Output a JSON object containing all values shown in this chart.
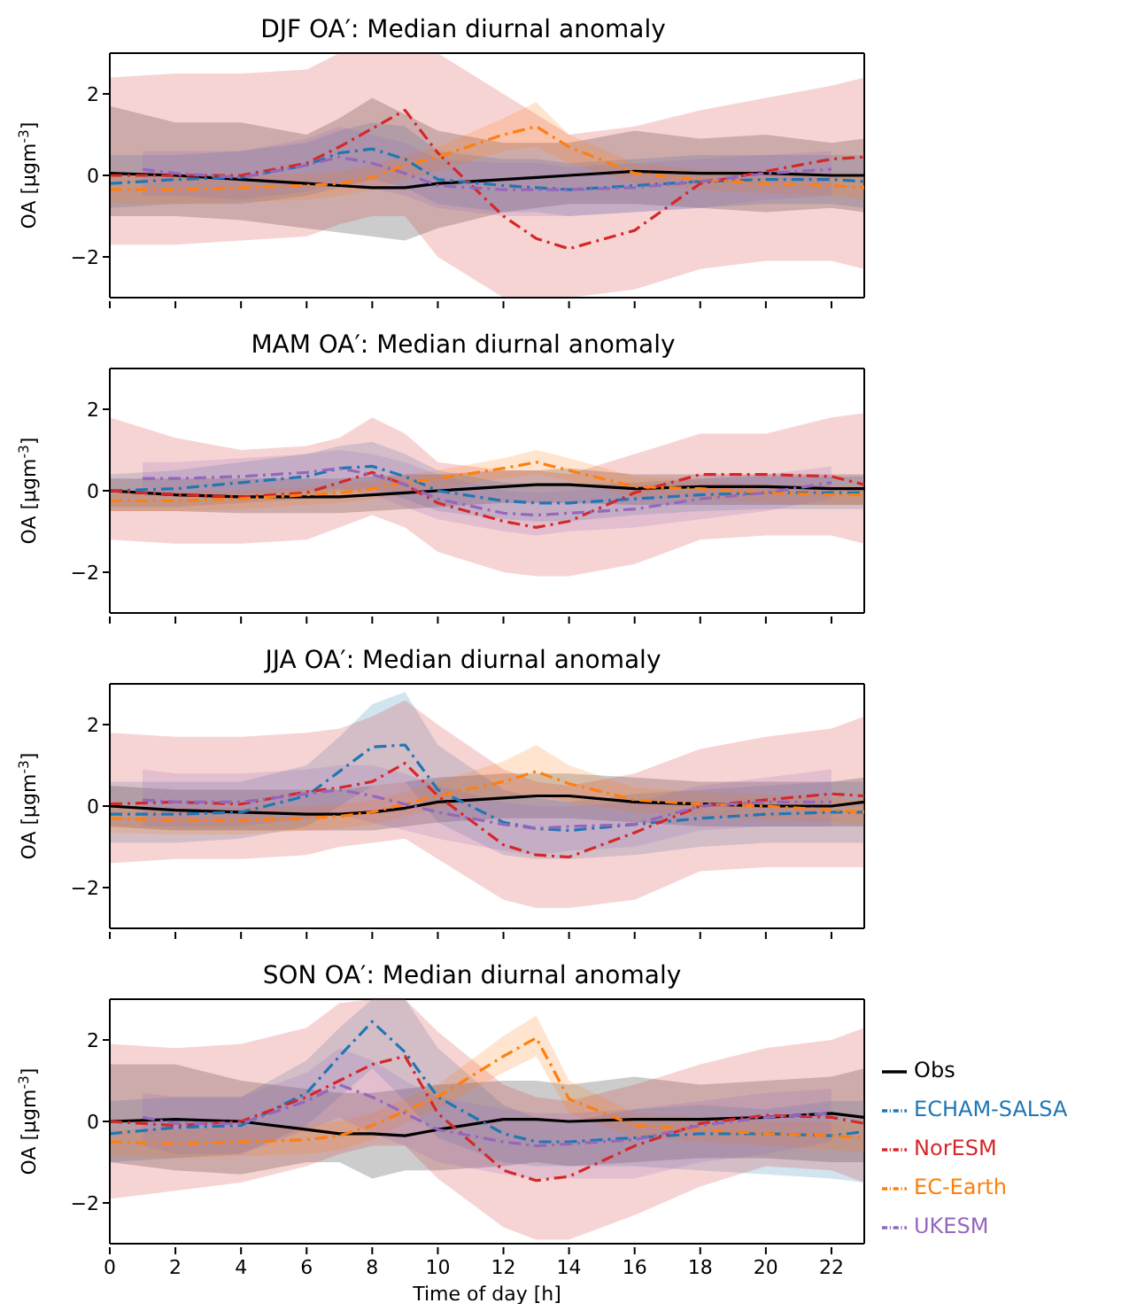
{
  "chart_data": [
    {
      "type": "line",
      "title": "DJF OA′: Median diurnal anomaly",
      "ylabel": "OA  [μgm$^{-3}$]",
      "x": [
        0,
        2,
        4,
        6,
        7,
        8,
        9,
        10,
        12,
        13,
        14,
        16,
        18,
        20,
        22,
        23
      ],
      "xlim": [
        0,
        23
      ],
      "xticks": [
        0,
        2,
        4,
        6,
        8,
        10,
        12,
        14,
        16,
        18,
        20,
        22
      ],
      "ylim": [
        -3,
        3
      ],
      "yticks": [
        -2,
        0,
        2
      ],
      "tick_labels": "y",
      "legend": false,
      "series": [
        {
          "color": "#000000",
          "line_style": "solid",
          "values": [
            0.05,
            0,
            -0.1,
            -0.2,
            -0.25,
            -0.3,
            -0.3,
            -0.2,
            -0.1,
            -0.05,
            0,
            0.1,
            0.05,
            0.05,
            0,
            0
          ],
          "lower": [
            -1.0,
            -1.0,
            -1.1,
            -1.3,
            -1.4,
            -1.5,
            -1.6,
            -1.3,
            -0.9,
            -0.8,
            -0.7,
            -0.7,
            -0.8,
            -0.9,
            -0.8,
            -0.9
          ],
          "upper": [
            1.7,
            1.3,
            1.3,
            1.0,
            1.4,
            1.9,
            1.5,
            1.1,
            0.8,
            0.8,
            0.8,
            1.1,
            0.9,
            1.0,
            0.8,
            0.9
          ]
        },
        {
          "color": "#1f77b4",
          "line_style": "dashed",
          "values": [
            -0.2,
            -0.1,
            -0.05,
            0.25,
            0.55,
            0.65,
            0.4,
            -0.1,
            -0.25,
            -0.3,
            -0.35,
            -0.25,
            -0.15,
            -0.1,
            -0.1,
            -0.15
          ],
          "lower": [
            -0.8,
            -0.7,
            -0.7,
            -0.5,
            -0.3,
            -0.1,
            -0.3,
            -0.7,
            -0.9,
            -0.9,
            -1.0,
            -0.9,
            -0.8,
            -0.7,
            -0.7,
            -0.8
          ],
          "upper": [
            0.5,
            0.5,
            0.6,
            0.8,
            1.1,
            1.3,
            1.2,
            0.6,
            0.4,
            0.4,
            0.3,
            0.4,
            0.5,
            0.5,
            0.5,
            0.5
          ]
        },
        {
          "color": "#d62728",
          "line_style": "dashed",
          "values": [
            0,
            0,
            0,
            0.3,
            0.7,
            1.15,
            1.6,
            0.55,
            -1.0,
            -1.55,
            -1.8,
            -1.35,
            -0.2,
            0.1,
            0.4,
            0.45
          ],
          "lower": [
            -1.7,
            -1.7,
            -1.6,
            -1.5,
            -1.2,
            -1.0,
            -1.0,
            -2.0,
            -3.0,
            -3.0,
            -3.0,
            -2.8,
            -2.3,
            -2.1,
            -2.1,
            -2.3
          ],
          "upper": [
            2.4,
            2.5,
            2.5,
            2.6,
            3.0,
            3.0,
            3.0,
            3.0,
            2.0,
            1.5,
            1.0,
            1.2,
            1.6,
            1.9,
            2.2,
            2.4
          ]
        },
        {
          "color": "#ff7f0e",
          "line_style": "dashed",
          "values": [
            -0.35,
            -0.35,
            -0.3,
            -0.25,
            -0.2,
            -0.05,
            0.25,
            0.45,
            1.0,
            1.2,
            0.7,
            0.05,
            -0.1,
            -0.2,
            -0.25,
            -0.3
          ],
          "lower": [
            -0.7,
            -0.7,
            -0.65,
            -0.6,
            -0.5,
            -0.35,
            -0.1,
            0.1,
            0.6,
            0.7,
            0.3,
            -0.2,
            -0.35,
            -0.45,
            -0.5,
            -0.6
          ],
          "upper": [
            0,
            0,
            0,
            0.05,
            0.1,
            0.25,
            0.5,
            0.7,
            1.4,
            1.8,
            1.0,
            0.3,
            0.15,
            0.1,
            0.05,
            0
          ]
        },
        {
          "color": "#9467bd",
          "line_style": "dashed",
          "x": [
            1,
            2,
            4,
            6,
            7,
            8,
            9,
            10,
            12,
            13,
            14,
            16,
            18,
            20,
            22
          ],
          "values": [
            0.15,
            0.05,
            -0.05,
            0.25,
            0.45,
            0.3,
            0.05,
            -0.25,
            -0.35,
            -0.35,
            -0.35,
            -0.3,
            -0.15,
            0.05,
            0.15
          ],
          "lower": [
            -0.5,
            -0.5,
            -0.6,
            -0.4,
            -0.2,
            -0.3,
            -0.5,
            -0.8,
            -1.0,
            -1.0,
            -1.0,
            -0.9,
            -0.8,
            -0.6,
            -0.5
          ],
          "upper": [
            0.6,
            0.6,
            0.6,
            0.9,
            1.2,
            1.0,
            0.8,
            0.4,
            0.3,
            0.3,
            0.2,
            0.3,
            0.4,
            0.5,
            0.6
          ]
        }
      ]
    },
    {
      "type": "line",
      "title": "MAM OA′: Median diurnal anomaly",
      "ylabel": "OA  [μgm$^{-3}$]",
      "x": [
        0,
        2,
        4,
        6,
        7,
        8,
        9,
        10,
        12,
        13,
        14,
        16,
        18,
        20,
        22,
        23
      ],
      "xlim": [
        0,
        23
      ],
      "xticks": [
        0,
        2,
        4,
        6,
        8,
        10,
        12,
        14,
        16,
        18,
        20,
        22
      ],
      "ylim": [
        -3,
        3
      ],
      "yticks": [
        -2,
        0,
        2
      ],
      "tick_labels": "y",
      "legend": false,
      "series": [
        {
          "color": "#000000",
          "line_style": "solid",
          "values": [
            0,
            -0.1,
            -0.15,
            -0.15,
            -0.15,
            -0.1,
            -0.05,
            0,
            0.1,
            0.15,
            0.15,
            0.05,
            0.1,
            0.1,
            0.05,
            0.05
          ],
          "lower": [
            -0.5,
            -0.5,
            -0.55,
            -0.55,
            -0.55,
            -0.5,
            -0.45,
            -0.4,
            -0.3,
            -0.3,
            -0.3,
            -0.35,
            -0.35,
            -0.35,
            -0.35,
            -0.35
          ],
          "upper": [
            0.3,
            0.3,
            0.3,
            0.3,
            0.3,
            0.35,
            0.4,
            0.4,
            0.5,
            0.5,
            0.55,
            0.4,
            0.4,
            0.4,
            0.4,
            0.4
          ]
        },
        {
          "color": "#1f77b4",
          "line_style": "dashed",
          "values": [
            0,
            0.05,
            0.2,
            0.35,
            0.55,
            0.6,
            0.35,
            0,
            -0.25,
            -0.3,
            -0.3,
            -0.2,
            -0.1,
            -0.05,
            -0.05,
            -0.05
          ],
          "lower": [
            -0.4,
            -0.4,
            -0.3,
            -0.2,
            0,
            0.05,
            -0.2,
            -0.5,
            -0.7,
            -0.75,
            -0.75,
            -0.6,
            -0.5,
            -0.45,
            -0.45,
            -0.45
          ],
          "upper": [
            0.4,
            0.5,
            0.7,
            0.9,
            1.1,
            1.2,
            0.9,
            0.5,
            0.2,
            0.15,
            0.15,
            0.2,
            0.3,
            0.35,
            0.35,
            0.35
          ]
        },
        {
          "color": "#d62728",
          "line_style": "dashed",
          "values": [
            0,
            -0.1,
            -0.15,
            -0.05,
            0.2,
            0.45,
            0.15,
            -0.3,
            -0.75,
            -0.9,
            -0.75,
            -0.05,
            0.4,
            0.4,
            0.35,
            0.15
          ],
          "lower": [
            -1.2,
            -1.3,
            -1.3,
            -1.2,
            -0.9,
            -0.6,
            -0.9,
            -1.5,
            -2.0,
            -2.1,
            -2.1,
            -1.8,
            -1.2,
            -1.1,
            -1.1,
            -1.3
          ],
          "upper": [
            1.8,
            1.3,
            1.0,
            1.1,
            1.3,
            1.8,
            1.4,
            0.7,
            0.5,
            0.5,
            0.4,
            0.9,
            1.4,
            1.4,
            1.8,
            1.9
          ]
        },
        {
          "color": "#ff7f0e",
          "line_style": "dashed",
          "values": [
            -0.25,
            -0.25,
            -0.2,
            -0.1,
            -0.05,
            0.05,
            0.2,
            0.3,
            0.55,
            0.7,
            0.5,
            0.1,
            0.05,
            -0.05,
            -0.1,
            -0.1
          ],
          "lower": [
            -0.5,
            -0.5,
            -0.45,
            -0.35,
            -0.3,
            -0.2,
            -0.05,
            0.05,
            0.3,
            0.4,
            0.25,
            -0.15,
            -0.2,
            -0.3,
            -0.35,
            -0.35
          ],
          "upper": [
            0,
            0,
            0,
            0.1,
            0.15,
            0.25,
            0.4,
            0.5,
            0.8,
            1.0,
            0.8,
            0.35,
            0.25,
            0.15,
            0.1,
            0.1
          ]
        },
        {
          "color": "#9467bd",
          "line_style": "dashed",
          "x": [
            1,
            2,
            4,
            6,
            7,
            8,
            9,
            10,
            12,
            13,
            14,
            16,
            18,
            20,
            22
          ],
          "values": [
            0.3,
            0.3,
            0.35,
            0.45,
            0.55,
            0.4,
            0.15,
            -0.2,
            -0.55,
            -0.6,
            -0.55,
            -0.45,
            -0.2,
            -0.05,
            0.2
          ],
          "lower": [
            -0.1,
            -0.1,
            -0.1,
            0,
            0.05,
            -0.1,
            -0.4,
            -0.7,
            -1.0,
            -1.1,
            -1.0,
            -0.9,
            -0.7,
            -0.5,
            -0.2
          ],
          "upper": [
            0.7,
            0.7,
            0.8,
            0.9,
            1.0,
            0.9,
            0.7,
            0.4,
            0,
            -0.05,
            0,
            0.1,
            0.3,
            0.4,
            0.6
          ]
        }
      ]
    },
    {
      "type": "line",
      "title": "JJA OA′: Median diurnal anomaly",
      "ylabel": "OA  [μgm$^{-3}$]",
      "x": [
        0,
        2,
        4,
        6,
        7,
        8,
        9,
        10,
        12,
        13,
        14,
        16,
        18,
        20,
        22,
        23
      ],
      "xlim": [
        0,
        23
      ],
      "xticks": [
        0,
        2,
        4,
        6,
        8,
        10,
        12,
        14,
        16,
        18,
        20,
        22
      ],
      "ylim": [
        -3,
        3
      ],
      "yticks": [
        -2,
        0,
        2
      ],
      "tick_labels": "y",
      "legend": false,
      "series": [
        {
          "color": "#000000",
          "line_style": "solid",
          "values": [
            0,
            -0.1,
            -0.15,
            -0.2,
            -0.2,
            -0.15,
            -0.05,
            0.1,
            0.2,
            0.25,
            0.25,
            0.1,
            0.05,
            0,
            0,
            0.1
          ],
          "lower": [
            -0.5,
            -0.6,
            -0.6,
            -0.6,
            -0.6,
            -0.6,
            -0.5,
            -0.4,
            -0.3,
            -0.3,
            -0.3,
            -0.4,
            -0.5,
            -0.5,
            -0.5,
            -0.5
          ],
          "upper": [
            0.5,
            0.4,
            0.4,
            0.4,
            0.4,
            0.5,
            0.6,
            0.7,
            0.8,
            0.8,
            0.8,
            0.7,
            0.6,
            0.6,
            0.6,
            0.7
          ]
        },
        {
          "color": "#1f77b4",
          "line_style": "dashed",
          "values": [
            -0.2,
            -0.2,
            -0.15,
            0.25,
            0.85,
            1.45,
            1.5,
            0.4,
            -0.4,
            -0.55,
            -0.6,
            -0.45,
            -0.3,
            -0.2,
            -0.15,
            -0.15
          ],
          "lower": [
            -0.9,
            -0.9,
            -0.8,
            -0.5,
            0,
            0.5,
            0.6,
            -0.4,
            -1.2,
            -1.3,
            -1.3,
            -1.2,
            -1.0,
            -0.9,
            -0.9,
            -0.9
          ],
          "upper": [
            0.6,
            0.6,
            0.6,
            1.0,
            1.7,
            2.5,
            2.8,
            1.5,
            0.4,
            0.2,
            0.1,
            0.3,
            0.4,
            0.5,
            0.6,
            0.6
          ]
        },
        {
          "color": "#d62728",
          "line_style": "dashed",
          "values": [
            0.05,
            0.1,
            0.05,
            0.35,
            0.45,
            0.6,
            1.05,
            0.25,
            -0.95,
            -1.2,
            -1.25,
            -0.65,
            0,
            0.15,
            0.3,
            0.25
          ],
          "lower": [
            -1.4,
            -1.3,
            -1.3,
            -1.2,
            -1.0,
            -0.9,
            -0.8,
            -1.3,
            -2.3,
            -2.5,
            -2.5,
            -2.3,
            -1.6,
            -1.5,
            -1.5,
            -1.5
          ],
          "upper": [
            1.8,
            1.7,
            1.7,
            1.8,
            1.9,
            2.2,
            2.6,
            2.0,
            0.9,
            0.6,
            0.5,
            0.8,
            1.4,
            1.7,
            1.9,
            2.2
          ]
        },
        {
          "color": "#ff7f0e",
          "line_style": "dashed",
          "values": [
            -0.3,
            -0.35,
            -0.35,
            -0.3,
            -0.25,
            -0.15,
            0.05,
            0.25,
            0.6,
            0.85,
            0.55,
            0.15,
            0.05,
            0,
            -0.1,
            -0.15
          ],
          "lower": [
            -0.65,
            -0.7,
            -0.7,
            -0.6,
            -0.55,
            -0.45,
            -0.25,
            -0.05,
            0.2,
            0.3,
            0.1,
            -0.15,
            -0.25,
            -0.35,
            -0.4,
            -0.45
          ],
          "upper": [
            0,
            -0.05,
            -0.05,
            0,
            0.05,
            0.15,
            0.35,
            0.6,
            1.1,
            1.5,
            1.0,
            0.45,
            0.35,
            0.3,
            0.2,
            0.15
          ]
        },
        {
          "color": "#9467bd",
          "line_style": "dashed",
          "x": [
            1,
            2,
            4,
            6,
            7,
            8,
            9,
            10,
            12,
            13,
            14,
            16,
            18,
            20,
            22
          ],
          "values": [
            0.15,
            0.1,
            0.1,
            0.3,
            0.4,
            0.25,
            0.05,
            -0.15,
            -0.45,
            -0.55,
            -0.5,
            -0.45,
            0,
            0.1,
            0.1
          ],
          "lower": [
            -0.5,
            -0.5,
            -0.5,
            -0.3,
            -0.2,
            -0.4,
            -0.6,
            -0.8,
            -1.1,
            -1.2,
            -1.1,
            -1.0,
            -0.6,
            -0.5,
            -0.5
          ],
          "upper": [
            0.9,
            0.8,
            0.8,
            0.9,
            1.0,
            1.0,
            0.8,
            0.5,
            0.1,
            0,
            0,
            0.1,
            0.5,
            0.7,
            0.9
          ]
        }
      ]
    },
    {
      "type": "line",
      "title": "SON OA′: Median diurnal anomaly",
      "xlabel": "Time of day [h]",
      "ylabel": "OA  [μgm$^{-3}$]",
      "x": [
        0,
        2,
        4,
        6,
        7,
        8,
        9,
        10,
        12,
        13,
        14,
        16,
        18,
        20,
        22,
        23
      ],
      "xlim": [
        0,
        23
      ],
      "xticks": [
        0,
        2,
        4,
        6,
        8,
        10,
        12,
        14,
        16,
        18,
        20,
        22
      ],
      "ylim": [
        -3,
        3
      ],
      "yticks": [
        -2,
        0,
        2
      ],
      "legend": "right",
      "series": [
        {
          "name": "Obs",
          "color": "#000000",
          "line_style": "solid",
          "values": [
            0,
            0.05,
            0,
            -0.2,
            -0.3,
            -0.3,
            -0.35,
            -0.2,
            0.05,
            0.05,
            0,
            0.05,
            0.05,
            0.1,
            0.2,
            0.1
          ],
          "lower": [
            -1.0,
            -1.2,
            -1.3,
            -1.0,
            -1.0,
            -1.4,
            -1.2,
            -1.2,
            -1.1,
            -1.0,
            -1.1,
            -1.0,
            -0.9,
            -0.9,
            -1.0,
            -1.0
          ],
          "upper": [
            1.4,
            1.4,
            1.0,
            0.8,
            0.7,
            0.7,
            0.8,
            0.9,
            1.0,
            1.0,
            0.9,
            1.1,
            0.9,
            1.0,
            1.1,
            1.3
          ]
        },
        {
          "name": "ECHAM-SALSA",
          "color": "#1f77b4",
          "line_style": "dashed",
          "values": [
            -0.3,
            -0.15,
            -0.1,
            0.7,
            1.6,
            2.45,
            1.7,
            0.6,
            -0.3,
            -0.5,
            -0.5,
            -0.4,
            -0.3,
            -0.3,
            -0.35,
            -0.25
          ],
          "lower": [
            -1.0,
            -0.9,
            -0.8,
            -0.1,
            0.6,
            1.3,
            0.5,
            -0.4,
            -1.0,
            -1.1,
            -1.1,
            -1.1,
            -1.2,
            -1.3,
            -1.4,
            -1.5
          ],
          "upper": [
            0.5,
            0.6,
            0.6,
            1.5,
            2.3,
            3.0,
            3.0,
            1.8,
            0.4,
            0.1,
            0,
            0.3,
            0.4,
            0.3,
            0.5,
            0.5
          ]
        },
        {
          "name": "NorESM",
          "color": "#d62728",
          "line_style": "dashed",
          "values": [
            0,
            -0.1,
            0,
            0.6,
            1.0,
            1.4,
            1.6,
            0.2,
            -1.2,
            -1.45,
            -1.35,
            -0.6,
            -0.05,
            0.15,
            0.1,
            -0.05
          ],
          "lower": [
            -1.9,
            -1.7,
            -1.5,
            -1.1,
            -0.8,
            -0.6,
            -0.6,
            -1.4,
            -2.6,
            -2.9,
            -2.9,
            -2.3,
            -1.6,
            -1.1,
            -1.2,
            -1.5
          ],
          "upper": [
            1.9,
            1.8,
            1.9,
            2.3,
            2.9,
            3.0,
            3.0,
            2.2,
            0.9,
            0.6,
            0.5,
            0.9,
            1.4,
            1.8,
            2.0,
            2.3
          ]
        },
        {
          "name": "EC-Earth",
          "color": "#ff7f0e",
          "line_style": "dashed",
          "values": [
            -0.5,
            -0.55,
            -0.5,
            -0.45,
            -0.35,
            -0.1,
            0.25,
            0.6,
            1.6,
            2.05,
            0.55,
            -0.1,
            -0.2,
            -0.3,
            -0.35,
            -0.4
          ],
          "lower": [
            -0.85,
            -0.9,
            -0.85,
            -0.8,
            -0.7,
            -0.45,
            -0.05,
            0.3,
            1.2,
            1.6,
            0.2,
            -0.4,
            -0.5,
            -0.6,
            -0.7,
            -0.75
          ],
          "upper": [
            -0.2,
            -0.2,
            -0.15,
            -0.1,
            0,
            0.2,
            0.55,
            0.9,
            2.1,
            2.6,
            1.0,
            0.2,
            0.1,
            0,
            0,
            -0.05
          ]
        },
        {
          "name": "UKESM",
          "color": "#9467bd",
          "line_style": "dashed",
          "x": [
            1,
            2,
            4,
            6,
            7,
            8,
            9,
            10,
            12,
            13,
            14,
            16,
            18,
            20,
            22
          ],
          "values": [
            0.1,
            -0.05,
            -0.05,
            0.5,
            0.9,
            0.6,
            0.2,
            -0.2,
            -0.5,
            -0.6,
            -0.55,
            -0.45,
            -0.1,
            0.1,
            0.2
          ],
          "lower": [
            -0.6,
            -0.8,
            -0.8,
            -0.2,
            0.1,
            -0.3,
            -0.6,
            -1.0,
            -1.3,
            -1.4,
            -1.4,
            -1.4,
            -1.0,
            -0.8,
            -0.5
          ],
          "upper": [
            0.7,
            0.6,
            0.6,
            1.2,
            1.8,
            1.5,
            1.0,
            0.6,
            0.3,
            0.2,
            0.2,
            0.3,
            0.5,
            0.7,
            0.8
          ]
        }
      ]
    }
  ]
}
